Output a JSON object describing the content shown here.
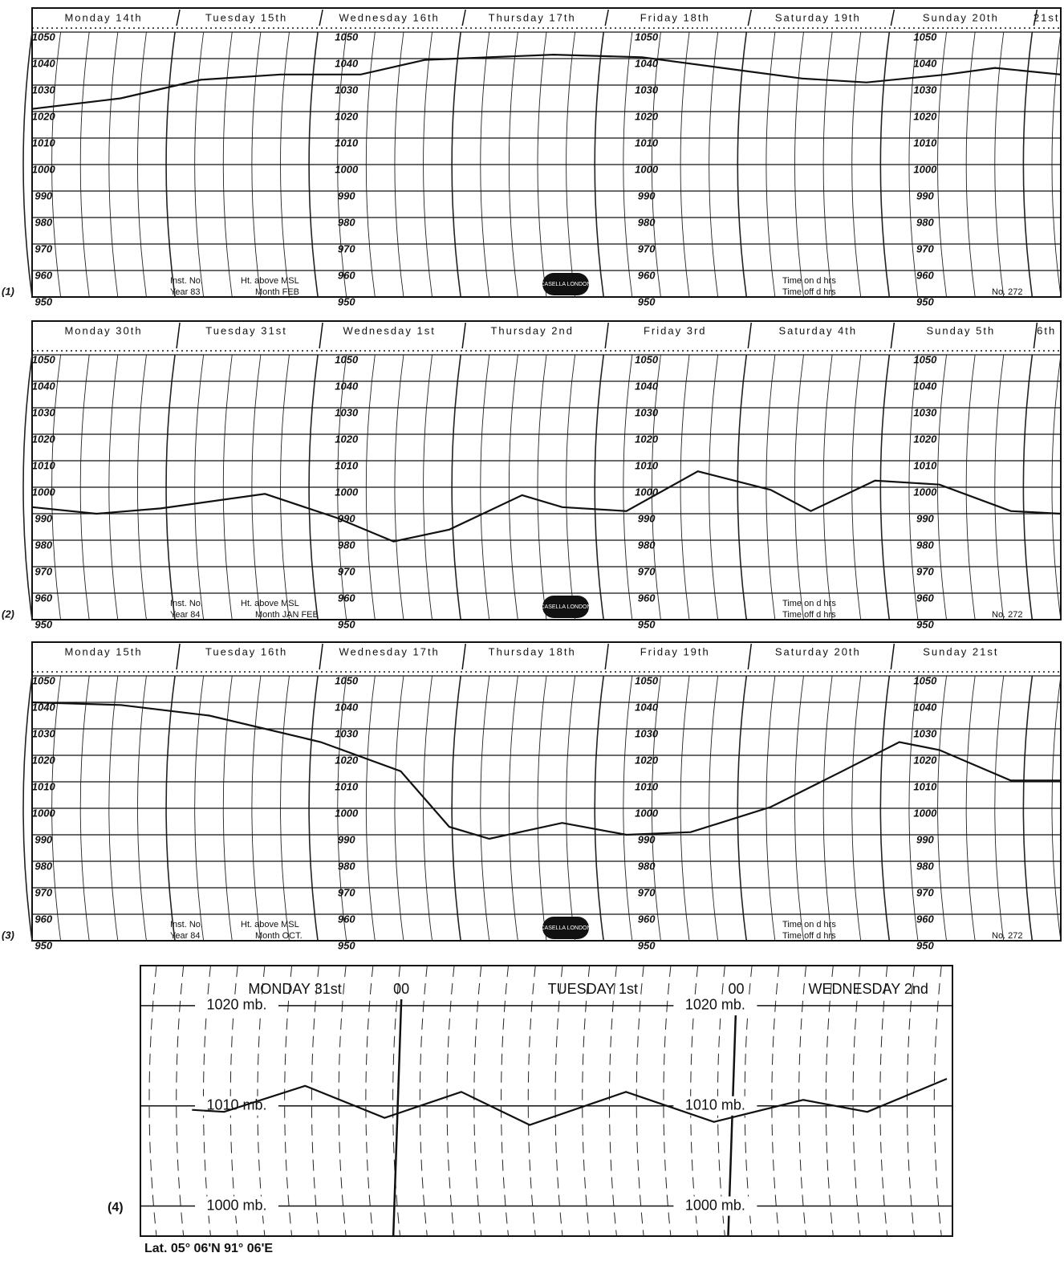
{
  "chart_data": [
    {
      "type": "line",
      "categories": [
        "Monday 14th",
        "Tuesday 15th",
        "Wednesday 16th",
        "Thursday 17th",
        "Friday 18th",
        "Saturday 19th",
        "Sunday 20th",
        "21st"
      ],
      "x": [
        0,
        0.62,
        1.18,
        1.74,
        2.3,
        2.75,
        3.65,
        4.27,
        4.83,
        5.39,
        5.84,
        6.4,
        6.74,
        7.2
      ],
      "series": [
        {
          "color": "#111111",
          "values": [
            1021,
            1025,
            1032,
            1034,
            1034,
            1039.5,
            1041.5,
            1040.5,
            1036.5,
            1032.5,
            1031,
            1034,
            1036.5,
            1034
          ]
        }
      ],
      "xlim": [
        0,
        7.2
      ],
      "ylim": [
        950,
        1050
      ],
      "yticks": [
        950,
        960,
        970,
        980,
        990,
        1000,
        1010,
        1020,
        1030,
        1040,
        1050
      ],
      "annotations": {
        "panel": "(1)",
        "inst_no": "Inst. No.",
        "year": "Year 83",
        "height": "Ht. above MSL",
        "month": "Month FEB",
        "maker": "CASELLA LONDON",
        "time_on": "Time on   d   hrs",
        "time_off": "Time off   d   hrs",
        "number": "No. 272"
      }
    },
    {
      "type": "line",
      "categories": [
        "Monday 30th",
        "Tuesday 31st",
        "Wednesday 1st",
        "Thursday 2nd",
        "Friday 3rd",
        "Saturday 4th",
        "Sunday 5th",
        "6th"
      ],
      "x": [
        0,
        0.45,
        0.9,
        1.63,
        2.13,
        2.53,
        2.92,
        3.43,
        3.71,
        4.16,
        4.66,
        5.17,
        5.45,
        5.9,
        6.35,
        6.85,
        7.2
      ],
      "series": [
        {
          "color": "#111111",
          "values": [
            992.5,
            990,
            992,
            997.5,
            988.5,
            979.5,
            984,
            997,
            992.5,
            991,
            1006,
            999,
            991,
            1002.5,
            1001,
            991,
            990
          ]
        }
      ],
      "xlim": [
        0,
        7.2
      ],
      "ylim": [
        950,
        1050
      ],
      "yticks": [
        950,
        960,
        970,
        980,
        990,
        1000,
        1010,
        1020,
        1030,
        1040,
        1050
      ],
      "annotations": {
        "panel": "(2)",
        "inst_no": "Inst. No.",
        "year": "Year 84",
        "height": "Ht. above MSL",
        "month": "Month JAN FEB",
        "maker": "CASELLA LONDON",
        "time_on": "Time on   d   hrs",
        "time_off": "Time off   d   hrs",
        "number": "No. 272"
      }
    },
    {
      "type": "line",
      "categories": [
        "Monday 15th",
        "Tuesday 16th",
        "Wednesday 17th",
        "Thursday 18th",
        "Friday 19th",
        "Saturday 20th",
        "Sunday 21st",
        null
      ],
      "x": [
        0,
        0.62,
        1.24,
        2.02,
        2.58,
        2.92,
        3.2,
        3.71,
        4.16,
        4.61,
        5.17,
        5.67,
        6.07,
        6.35,
        6.85,
        7.2
      ],
      "series": [
        {
          "color": "#111111",
          "values": [
            1040,
            1039,
            1035,
            1025,
            1014,
            993,
            988.5,
            994.5,
            990,
            991,
            1000.5,
            1014,
            1025,
            1022,
            1010.5,
            1010.5
          ]
        }
      ],
      "xlim": [
        0,
        7.2
      ],
      "ylim": [
        950,
        1050
      ],
      "yticks": [
        950,
        960,
        970,
        980,
        990,
        1000,
        1010,
        1020,
        1030,
        1040,
        1050
      ],
      "annotations": {
        "panel": "(3)",
        "inst_no": "Inst. No.",
        "year": "Year 84",
        "height": "Ht. above MSL",
        "month": "Month OCT.",
        "maker": "CASELLA LONDON",
        "time_on": "Time on   d   hrs",
        "time_off": "Time off   d   hrs",
        "number": "No. 272"
      }
    },
    {
      "type": "line",
      "categories": [
        "MONDAY 31st",
        "TUESDAY 1st",
        "WEDNESDAY 2nd"
      ],
      "x": [
        9,
        11.3,
        17.1,
        22.8,
        28.3,
        33.2,
        40.1,
        46.4,
        52.8,
        57.4,
        63.1
      ],
      "series": [
        {
          "color": "#111111",
          "values": [
            1009.6,
            1009.4,
            1012,
            1008.8,
            1011.4,
            1008.1,
            1011.4,
            1008.4,
            1010.6,
            1009.4,
            1012.7
          ]
        }
      ],
      "xlim": [
        5.3,
        63.5
      ],
      "ylim": [
        997,
        1024
      ],
      "xticks": [
        {
          "value": 24,
          "label": "00"
        },
        {
          "value": 48,
          "label": "00"
        }
      ],
      "yticks": [
        {
          "value": 1000,
          "label": "1000 mb."
        },
        {
          "value": 1010,
          "label": "1010 mb."
        },
        {
          "value": 1020,
          "label": "1020 mb."
        }
      ],
      "annotations": {
        "panel": "(4)",
        "caption": "Lat. 05° 06'N 91° 06'E"
      }
    }
  ]
}
